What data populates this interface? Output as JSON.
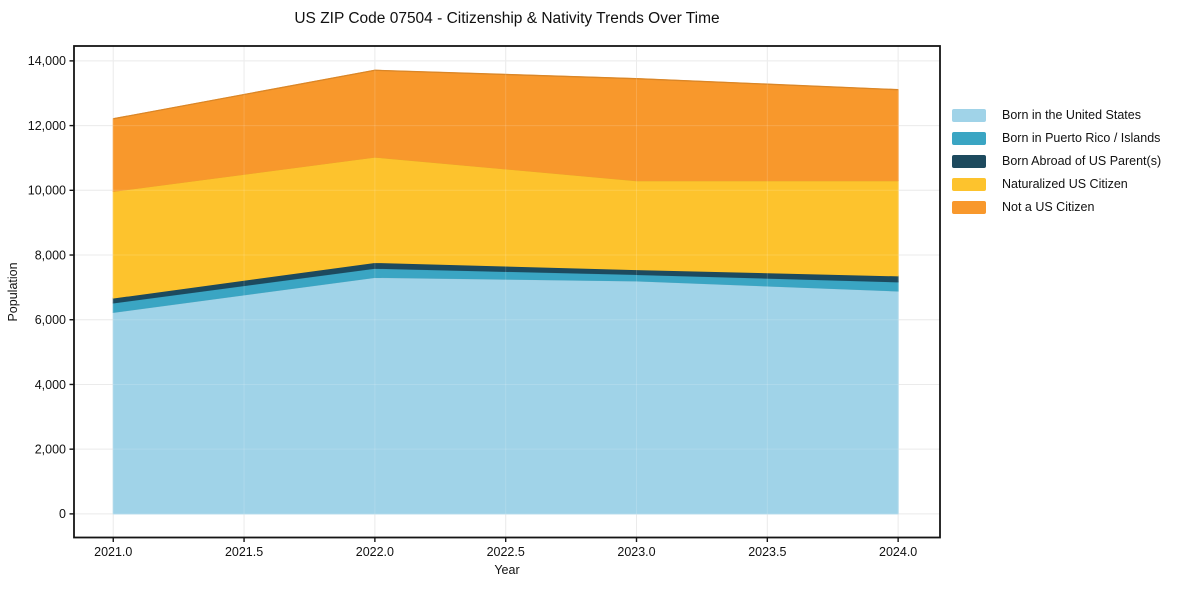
{
  "chart_data": {
    "type": "area",
    "stacked": true,
    "title": "US ZIP Code 07504 - Citizenship & Nativity Trends Over Time",
    "xlabel": "Year",
    "ylabel": "Population",
    "x": [
      2021,
      2022,
      2023,
      2024
    ],
    "series": [
      {
        "name": "Born in the United States",
        "color": "#a0d3e8",
        "values": [
          6230,
          7310,
          7200,
          6890
        ]
      },
      {
        "name": "Born in Puerto Rico / Islands",
        "color": "#3aa5c3",
        "values": [
          290,
          280,
          200,
          280
        ]
      },
      {
        "name": "Born Abroad of US Parent(s)",
        "color": "#1d4a5e",
        "values": [
          150,
          180,
          150,
          185
        ]
      },
      {
        "name": "Naturalized US Citizen",
        "color": "#fdc32d",
        "values": [
          3300,
          3260,
          2750,
          2945
        ]
      },
      {
        "name": "Not a US Citizen",
        "color": "#f8982c",
        "values": [
          2240,
          2680,
          3150,
          2810
        ]
      }
    ],
    "stack_totals": [
      12210,
      13710,
      13450,
      13110
    ],
    "xlim": [
      2020.85,
      2024.16
    ],
    "ylim": [
      -730,
      14460
    ],
    "xticks": {
      "values": [
        2021,
        2021.5,
        2022,
        2022.5,
        2023,
        2023.5,
        2024
      ],
      "labels": [
        "2021.0",
        "2021.5",
        "2022.0",
        "2022.5",
        "2023.0",
        "2023.5",
        "2024.0"
      ]
    },
    "yticks": {
      "values": [
        0,
        2000,
        4000,
        6000,
        8000,
        10000,
        12000,
        14000
      ],
      "labels": [
        "0",
        "2,000",
        "4,000",
        "6,000",
        "8,000",
        "10,000",
        "12,000",
        "14,000"
      ]
    },
    "grid": true,
    "legend_position": "right-outside"
  },
  "colors": {
    "background": "#ffffff",
    "grid": "#e8e8e8",
    "frame": "#141414",
    "text": "#111111"
  }
}
